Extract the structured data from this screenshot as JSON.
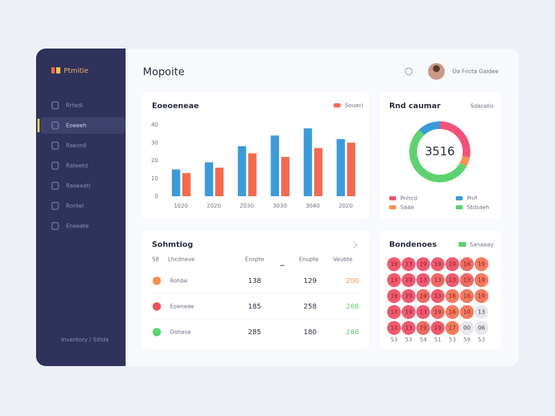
{
  "header": {
    "title": "Mopoite",
    "user": "Da Fncta Gaidee"
  },
  "sidebar": {
    "logo": "Ptmitie",
    "items": [
      "Rrtedl",
      "Eoeeeh",
      "Raeonll",
      "Rateetd",
      "Raoeeatl",
      "Rontel",
      "Eneeete"
    ],
    "active": 1,
    "footer": "Inventory / Sitlda"
  },
  "chart_data": [
    {
      "type": "bar",
      "title": "Eoeoeneae",
      "categories": [
        "1020",
        "2020",
        "2030",
        "3030",
        "3040",
        "2020"
      ],
      "series": [
        {
          "name": null,
          "color": "#3b9bd8",
          "values": [
            15,
            19,
            28,
            34,
            38,
            32
          ]
        },
        {
          "name": "Souaci",
          "color": "#f26b4f",
          "values": [
            13,
            16,
            24,
            22,
            27,
            30
          ]
        }
      ],
      "ylim": [
        0,
        40
      ],
      "yticks": [
        0,
        10,
        20,
        30,
        40
      ]
    },
    {
      "type": "pie",
      "title": "Rnd caumar",
      "subtitle": "Sdasatis",
      "center_label": "3516",
      "categories": [
        "Pnhcd",
        "Saae",
        "Stdsaeh",
        "Pnlf"
      ],
      "values": [
        28,
        5,
        55,
        12
      ],
      "colors": [
        "#f2527a",
        "#f5924f",
        "#5dd36f",
        "#3b9bd8"
      ]
    }
  ],
  "table": {
    "title": "Sohmtiog",
    "columns": [
      "S8",
      "Lhcdneve",
      "Enspte",
      "Enupte",
      "Veubte"
    ],
    "rows": [
      [
        "Rohbe",
        138,
        129,
        200
      ],
      [
        "Eoeneae",
        185,
        258,
        268
      ],
      [
        "Dohase",
        285,
        180,
        288
      ]
    ],
    "dot_colors": [
      "#f5924f",
      "#ef4f5e",
      "#5dd36f"
    ],
    "last_colors": [
      "#f5924f",
      "#5dd36f",
      "#5dd36f"
    ]
  },
  "heatmap": {
    "title": "Bondenoes",
    "legend": "Sanaeay",
    "legend_color": "#5dd36f",
    "rows": [
      [
        "19",
        "13",
        "19",
        "19",
        "19",
        "16",
        "19"
      ],
      [
        "13",
        "19",
        "13",
        "13",
        "13",
        "13",
        "19"
      ],
      [
        "19",
        "19",
        "19",
        "13",
        "16",
        "16",
        "19"
      ],
      [
        "13",
        "19",
        "13",
        "19",
        "16",
        "10",
        "13"
      ],
      [
        "13",
        "13",
        "19",
        "19",
        "17",
        "00",
        "06"
      ]
    ],
    "colors": [
      [
        "#ee5a6e",
        "#ee5a6e",
        "#ee5a6e",
        "#ee5a6e",
        "#ee5a6e",
        "#ef6a66",
        "#f47a5e"
      ],
      [
        "#ee5a6e",
        "#ee5a6e",
        "#ee5a6e",
        "#ef6a66",
        "#ee5a6e",
        "#ef6a66",
        "#f47a5e"
      ],
      [
        "#ee5a6e",
        "#ee5a6e",
        "#ef6a66",
        "#ee5a6e",
        "#f47a5e",
        "#f47a5e",
        "#f47a5e"
      ],
      [
        "#ee5a6e",
        "#ee5a6e",
        "#ee5a6e",
        "#ef6a66",
        "#f47a5e",
        "#f47a5e",
        "#e6e7ee"
      ],
      [
        "#ee5a6e",
        "#ee5a6e",
        "#ef6a66",
        "#ee5a6e",
        "#f47a5e",
        "#e6e7ee",
        "#e6e7ee"
      ]
    ],
    "columns": [
      "53",
      "53",
      "54",
      "51",
      "53",
      "59",
      "53"
    ]
  }
}
